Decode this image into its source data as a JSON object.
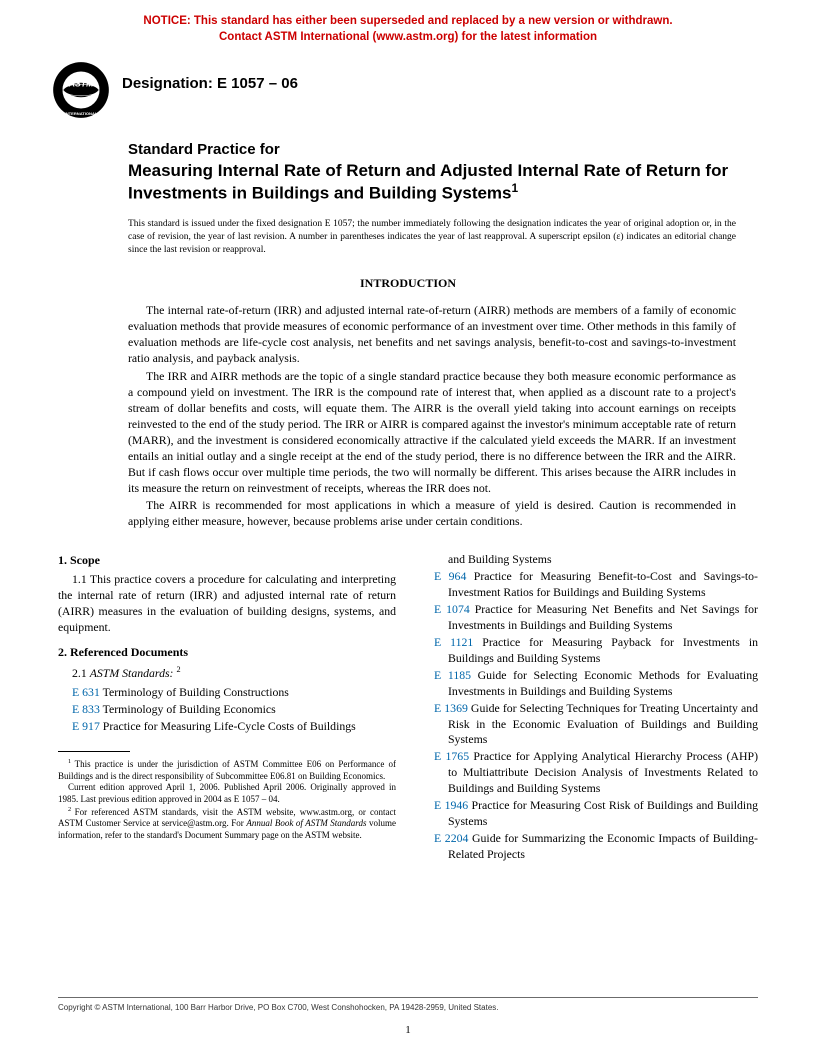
{
  "notice": {
    "line1": "NOTICE: This standard has either been superseded and replaced by a new version or withdrawn.",
    "line2": "Contact ASTM International (www.astm.org) for the latest information"
  },
  "designation": "Designation: E 1057 – 06",
  "title": {
    "prefix": "Standard Practice for",
    "main": "Measuring Internal Rate of Return and Adjusted Internal Rate of Return for Investments in Buildings and Building Systems",
    "sup": "1"
  },
  "issue_note": "This standard is issued under the fixed designation E 1057; the number immediately following the designation indicates the year of original adoption or, in the case of revision, the year of last revision. A number in parentheses indicates the year of last reapproval. A superscript epsilon (ε) indicates an editorial change since the last revision or reapproval.",
  "intro_head": "INTRODUCTION",
  "intro": {
    "p1": "The internal rate-of-return (IRR) and adjusted internal rate-of-return (AIRR) methods are members of a family of economic evaluation methods that provide measures of economic performance of an investment over time. Other methods in this family of evaluation methods are life-cycle cost analysis, net benefits and net savings analysis, benefit-to-cost and savings-to-investment ratio analysis, and payback analysis.",
    "p2": "The IRR and AIRR methods are the topic of a single standard practice because they both measure economic performance as a compound yield on investment. The IRR is the compound rate of interest that, when applied as a discount rate to a project's stream of dollar benefits and costs, will equate them. The AIRR is the overall yield taking into account earnings on receipts reinvested to the end of the study period. The IRR or AIRR is compared against the investor's minimum acceptable rate of return (MARR), and the investment is considered economically attractive if the calculated yield exceeds the MARR. If an investment entails an initial outlay and a single receipt at the end of the study period, there is no difference between the IRR and the AIRR. But if cash flows occur over multiple time periods, the two will normally be different. This arises because the AIRR includes in its measure the return on reinvestment of receipts, whereas the IRR does not.",
    "p3": "The AIRR is recommended for most applications in which a measure of yield is desired. Caution is recommended in applying either measure, however, because problems arise under certain conditions."
  },
  "scope": {
    "head": "1. Scope",
    "p1": "1.1 This practice covers a procedure for calculating and interpreting the internal rate of return (IRR) and adjusted internal rate of return (AIRR) measures in the evaluation of building designs, systems, and equipment."
  },
  "refdocs": {
    "head": "2. Referenced Documents",
    "sub_num": "2.1",
    "sub_label": "ASTM Standards:",
    "sub_sup": "2"
  },
  "refs_left": [
    {
      "code": "E 631",
      "title": "Terminology of Building Constructions"
    },
    {
      "code": "E 833",
      "title": "Terminology of Building Economics"
    },
    {
      "code": "E 917",
      "title": "Practice for Measuring Life-Cycle Costs of Buildings"
    }
  ],
  "refs_carry": "and Building Systems",
  "refs_right": [
    {
      "code": "E 964",
      "title": "Practice for Measuring Benefit-to-Cost and Savings-to-Investment Ratios for Buildings and Building Systems"
    },
    {
      "code": "E 1074",
      "title": "Practice for Measuring Net Benefits and Net Savings for Investments in Buildings and Building Systems"
    },
    {
      "code": "E 1121",
      "title": "Practice for Measuring Payback for Investments in Buildings and Building Systems"
    },
    {
      "code": "E 1185",
      "title": "Guide for Selecting Economic Methods for Evaluating Investments in Buildings and Building Systems"
    },
    {
      "code": "E 1369",
      "title": "Guide for Selecting Techniques for Treating Uncertainty and Risk in the Economic Evaluation of Buildings and Building Systems"
    },
    {
      "code": "E 1765",
      "title": "Practice for Applying Analytical Hierarchy Process (AHP) to Multiattribute Decision Analysis of Investments Related to Buildings and Building Systems"
    },
    {
      "code": "E 1946",
      "title": "Practice for Measuring Cost Risk of Buildings and Building Systems"
    },
    {
      "code": "E 2204",
      "title": "Guide for Summarizing the Economic Impacts of Building-Related Projects"
    }
  ],
  "footnotes": {
    "f1": "This practice is under the jurisdiction of ASTM Committee E06 on Performance of Buildings and is the direct responsibility of Subcommittee E06.81 on Building Economics.",
    "f1b": "Current edition approved April 1, 2006. Published April 2006. Originally approved in 1985. Last previous edition approved in 2004 as E 1057 – 04.",
    "f2a": "For referenced ASTM standards, visit the ASTM website, www.astm.org, or contact ASTM Customer Service at service@astm.org. For ",
    "f2b": "Annual Book of ASTM Standards",
    "f2c": " volume information, refer to the standard's Document Summary page on the ASTM website."
  },
  "copyright": "Copyright © ASTM International, 100 Barr Harbor Drive, PO Box C700, West Conshohocken, PA 19428-2959, United States.",
  "pagenum": "1",
  "logo": {
    "bg": "#ffffff",
    "fg": "#000000",
    "text_top": "ASTM",
    "text_bottom": "INTERNATIONAL"
  }
}
